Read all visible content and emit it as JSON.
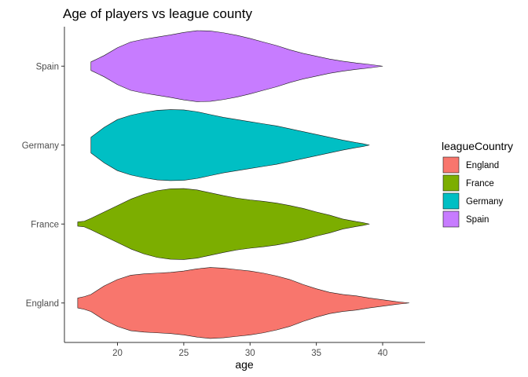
{
  "chart_data": {
    "type": "violin",
    "title": "Age of players vs league county",
    "xlabel": "age",
    "ylabel": "",
    "xlim": [
      16.0,
      43.2
    ],
    "xticks": [
      20,
      25,
      30,
      35,
      40
    ],
    "categories": [
      "England",
      "France",
      "Germany",
      "Spain"
    ],
    "legend": {
      "title": "leagueCountry",
      "placement": "right",
      "entries": [
        "England",
        "France",
        "Germany",
        "Spain"
      ]
    },
    "grid": false,
    "series": [
      {
        "name": "England",
        "color": "#F8766D",
        "min": 17,
        "max": 42,
        "density": [
          [
            17,
            0.14
          ],
          [
            17.5,
            0.18
          ],
          [
            18,
            0.24
          ],
          [
            19,
            0.48
          ],
          [
            20,
            0.66
          ],
          [
            21,
            0.78
          ],
          [
            22,
            0.82
          ],
          [
            23,
            0.84
          ],
          [
            24,
            0.86
          ],
          [
            25,
            0.9
          ],
          [
            26,
            0.96
          ],
          [
            27,
            1.0
          ],
          [
            28,
            0.98
          ],
          [
            29,
            0.94
          ],
          [
            30,
            0.9
          ],
          [
            31,
            0.84
          ],
          [
            32,
            0.76
          ],
          [
            33,
            0.66
          ],
          [
            34,
            0.52
          ],
          [
            35,
            0.4
          ],
          [
            36,
            0.3
          ],
          [
            37,
            0.24
          ],
          [
            38,
            0.2
          ],
          [
            39,
            0.14
          ],
          [
            40,
            0.09
          ],
          [
            41,
            0.04
          ],
          [
            42,
            0.0
          ]
        ]
      },
      {
        "name": "France",
        "color": "#7CAE00",
        "min": 17,
        "max": 39,
        "density": [
          [
            17,
            0.06
          ],
          [
            17.5,
            0.08
          ],
          [
            18,
            0.16
          ],
          [
            19,
            0.34
          ],
          [
            20,
            0.52
          ],
          [
            21,
            0.7
          ],
          [
            22,
            0.84
          ],
          [
            23,
            0.94
          ],
          [
            24,
            0.99
          ],
          [
            25,
            1.0
          ],
          [
            26,
            0.96
          ],
          [
            27,
            0.88
          ],
          [
            28,
            0.8
          ],
          [
            29,
            0.73
          ],
          [
            30,
            0.68
          ],
          [
            31,
            0.64
          ],
          [
            32,
            0.59
          ],
          [
            33,
            0.52
          ],
          [
            34,
            0.44
          ],
          [
            35,
            0.34
          ],
          [
            36,
            0.25
          ],
          [
            37,
            0.14
          ],
          [
            38,
            0.07
          ],
          [
            38.5,
            0.04
          ],
          [
            39,
            0.0
          ]
        ]
      },
      {
        "name": "Germany",
        "color": "#00BFC4",
        "min": 18,
        "max": 39,
        "density": [
          [
            18,
            0.22
          ],
          [
            19,
            0.5
          ],
          [
            20,
            0.72
          ],
          [
            21,
            0.84
          ],
          [
            22,
            0.92
          ],
          [
            23,
            0.98
          ],
          [
            24,
            1.0
          ],
          [
            25,
            0.99
          ],
          [
            26,
            0.94
          ],
          [
            27,
            0.86
          ],
          [
            28,
            0.78
          ],
          [
            29,
            0.72
          ],
          [
            30,
            0.66
          ],
          [
            31,
            0.6
          ],
          [
            32,
            0.54
          ],
          [
            33,
            0.46
          ],
          [
            34,
            0.38
          ],
          [
            35,
            0.3
          ],
          [
            36,
            0.22
          ],
          [
            37,
            0.14
          ],
          [
            38,
            0.07
          ],
          [
            38.5,
            0.04
          ],
          [
            39,
            0.0
          ]
        ]
      },
      {
        "name": "Spain",
        "color": "#C77CFF",
        "min": 18,
        "max": 40,
        "density": [
          [
            18,
            0.12
          ],
          [
            19,
            0.3
          ],
          [
            20,
            0.52
          ],
          [
            21,
            0.68
          ],
          [
            22,
            0.76
          ],
          [
            23,
            0.82
          ],
          [
            24,
            0.88
          ],
          [
            25,
            0.95
          ],
          [
            26,
            1.0
          ],
          [
            27,
            0.99
          ],
          [
            28,
            0.94
          ],
          [
            29,
            0.87
          ],
          [
            30,
            0.78
          ],
          [
            31,
            0.68
          ],
          [
            32,
            0.58
          ],
          [
            33,
            0.46
          ],
          [
            34,
            0.36
          ],
          [
            35,
            0.28
          ],
          [
            36,
            0.2
          ],
          [
            37,
            0.14
          ],
          [
            38,
            0.09
          ],
          [
            39,
            0.05
          ],
          [
            40,
            0.0
          ]
        ]
      }
    ]
  }
}
